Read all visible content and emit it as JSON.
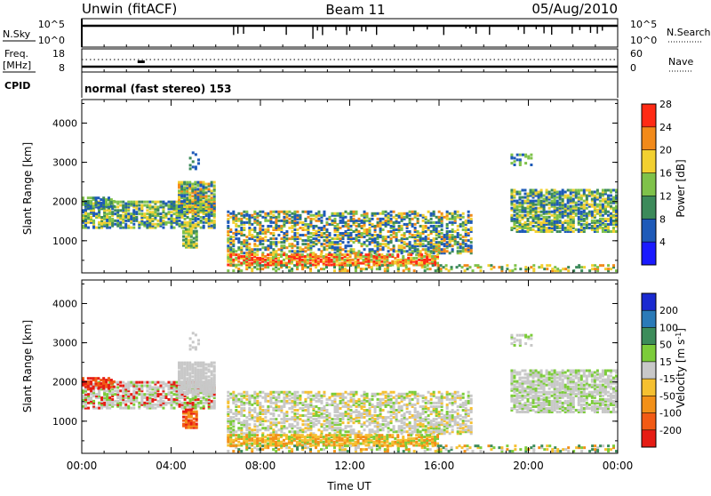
{
  "header": {
    "station": "Unwin (fitACF)",
    "beam": "Beam 11",
    "date": "05/Aug/2010"
  },
  "status_panel": {
    "left_label": "N.Sky",
    "left_ticks": [
      "10^5",
      "10^0"
    ],
    "right_label": "N.Search",
    "right_ticks": [
      "10^5",
      "10^0"
    ],
    "mode_text": "normal (fast stereo) 153"
  },
  "freq_panel": {
    "left_label_top": "Freq.",
    "left_label_unit": "[MHz]",
    "left_ticks": [
      "18",
      "8"
    ],
    "right_label": "Nave",
    "right_ticks": [
      "60",
      "0"
    ],
    "cpid_label": "CPID"
  },
  "chart_data": [
    {
      "type": "heatmap",
      "title": "",
      "quantity": "Power",
      "ylabel": "Slant Range [km]",
      "xlabel": "",
      "xlim": [
        "00:00",
        "24:00"
      ],
      "ylim": [
        180,
        4600
      ],
      "y_ticks": [
        "1000",
        "2000",
        "3000",
        "4000"
      ],
      "colorbar": {
        "label": "Power [dB]",
        "ticks": [
          "4",
          "8",
          "12",
          "16",
          "20",
          "24",
          "28"
        ],
        "range": [
          0,
          32
        ],
        "colors": [
          "#1a1aff",
          "#1e5ab8",
          "#3c8a5a",
          "#7fc24a",
          "#f2d030",
          "#f28a1a",
          "#ff2a14"
        ]
      }
    },
    {
      "type": "heatmap",
      "title": "",
      "quantity": "Velocity",
      "ylabel": "Slant Range [km]",
      "xlabel": "Time UT",
      "xlim": [
        "00:00",
        "24:00"
      ],
      "ylim": [
        180,
        4600
      ],
      "x_ticks": [
        "00:00",
        "04:00",
        "08:00",
        "12:00",
        "16:00",
        "20:00",
        "00:00"
      ],
      "y_ticks": [
        "1000",
        "2000",
        "3000",
        "4000"
      ],
      "colorbar": {
        "label": "Velocity [m s",
        "label_exp": "-1",
        "label_end": "]",
        "ticks": [
          "200",
          "100",
          "50",
          "15",
          "-15",
          "-50",
          "-100",
          "-200"
        ],
        "colors": [
          "#1a2ad0",
          "#2a7ab8",
          "#3c8c5a",
          "#7ccc3a",
          "#c8c8c8",
          "#f5c030",
          "#f29018",
          "#f25a14",
          "#e61c14"
        ]
      }
    }
  ]
}
